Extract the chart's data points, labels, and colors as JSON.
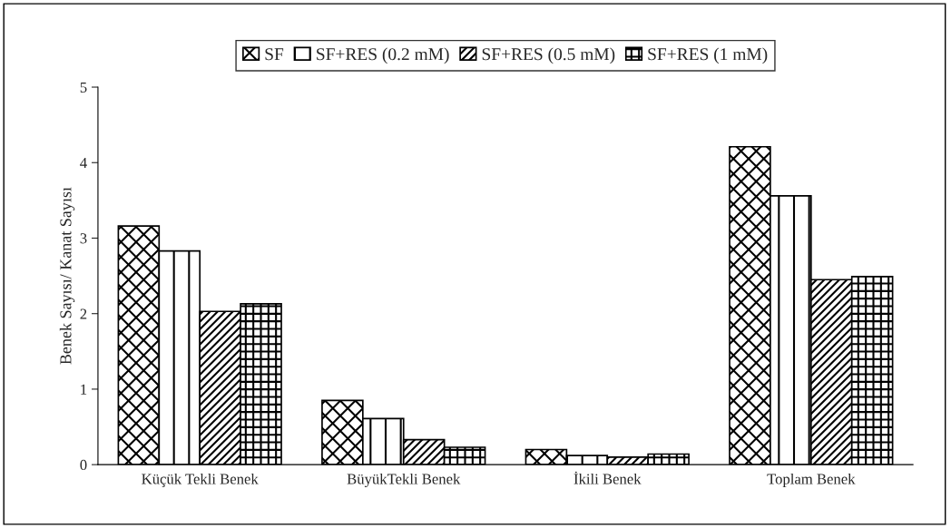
{
  "chart_data": {
    "type": "bar",
    "ylabel": "Benek Sayısı/ Kanat Sayısı",
    "categories": [
      "Küçük Tekli Benek",
      "BüyükTekli Benek",
      "İkili Benek",
      "Toplam Benek"
    ],
    "series": [
      {
        "name": "SF",
        "color": "#000000",
        "values": [
          3.16,
          0.85,
          0.2,
          4.21
        ]
      },
      {
        "name": "SF+RES (0.2 mM)",
        "color": "#000000",
        "values": [
          2.83,
          0.61,
          0.12,
          3.56
        ]
      },
      {
        "name": "SF+RES (0.5 mM)",
        "color": "#000000",
        "values": [
          2.03,
          0.33,
          0.1,
          2.45
        ]
      },
      {
        "name": "SF+RES (1 mM)",
        "color": "#000000",
        "values": [
          2.13,
          0.23,
          0.14,
          2.49
        ]
      }
    ],
    "ylim": [
      0,
      5
    ],
    "yticks": [
      0,
      1,
      2,
      3,
      4,
      5
    ],
    "grid": false,
    "legend": "top"
  }
}
